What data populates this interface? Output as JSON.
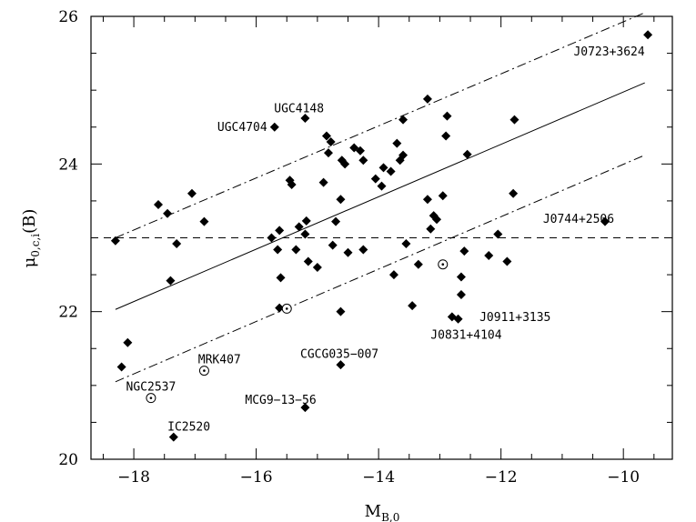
{
  "chart_data": {
    "type": "scatter",
    "title": "",
    "xlabel": {
      "main": "M",
      "sub": "B,0"
    },
    "ylabel": {
      "main": "μ",
      "sub": "0,c,i",
      "tail": "(B)"
    },
    "xlim": [
      -18.7,
      -9.2
    ],
    "ylim": [
      20,
      26
    ],
    "x_major_ticks": [
      -18,
      -16,
      -14,
      -12,
      -10
    ],
    "y_major_ticks": [
      20,
      22,
      24,
      26
    ],
    "x_minor_step": 0.5,
    "y_minor_step": 0.5,
    "grid": false,
    "series": [
      {
        "marker": "filled-diamond",
        "points": [
          [
            -18.3,
            22.96
          ],
          [
            -18.2,
            21.25
          ],
          [
            -18.1,
            21.58
          ],
          [
            -17.6,
            23.45
          ],
          [
            -17.45,
            23.33
          ],
          [
            -17.4,
            22.42
          ],
          [
            -17.3,
            22.92
          ],
          [
            -17.05,
            23.6
          ],
          [
            -16.85,
            23.22
          ],
          [
            -15.7,
            24.5
          ],
          [
            -15.75,
            23.0
          ],
          [
            -15.62,
            23.1
          ],
          [
            -15.65,
            22.84
          ],
          [
            -15.6,
            22.46
          ],
          [
            -15.62,
            22.05
          ],
          [
            -15.45,
            23.78
          ],
          [
            -15.42,
            23.72
          ],
          [
            -15.35,
            22.84
          ],
          [
            -15.3,
            23.15
          ],
          [
            -15.2,
            23.05
          ],
          [
            -15.18,
            23.23
          ],
          [
            -15.15,
            22.68
          ],
          [
            -15.2,
            24.62
          ],
          [
            -15.0,
            22.6
          ],
          [
            -14.9,
            23.75
          ],
          [
            -14.85,
            24.38
          ],
          [
            -14.82,
            24.15
          ],
          [
            -14.78,
            24.3
          ],
          [
            -14.75,
            22.9
          ],
          [
            -14.7,
            23.22
          ],
          [
            -14.62,
            23.52
          ],
          [
            -14.6,
            24.05
          ],
          [
            -14.55,
            24.0
          ],
          [
            -14.62,
            22.0
          ],
          [
            -14.5,
            22.8
          ],
          [
            -14.4,
            24.22
          ],
          [
            -14.3,
            24.18
          ],
          [
            -14.25,
            24.05
          ],
          [
            -14.25,
            22.84
          ],
          [
            -14.05,
            23.8
          ],
          [
            -13.95,
            23.7
          ],
          [
            -13.92,
            23.95
          ],
          [
            -13.8,
            23.9
          ],
          [
            -13.75,
            22.5
          ],
          [
            -13.7,
            24.28
          ],
          [
            -13.65,
            24.05
          ],
          [
            -13.6,
            24.12
          ],
          [
            -13.6,
            24.6
          ],
          [
            -13.55,
            22.92
          ],
          [
            -13.45,
            22.08
          ],
          [
            -13.35,
            22.64
          ],
          [
            -13.2,
            24.88
          ],
          [
            -13.2,
            23.52
          ],
          [
            -13.15,
            23.12
          ],
          [
            -13.1,
            23.3
          ],
          [
            -13.05,
            23.25
          ],
          [
            -12.95,
            23.57
          ],
          [
            -12.9,
            24.38
          ],
          [
            -12.88,
            24.65
          ],
          [
            -12.8,
            21.93
          ],
          [
            -12.7,
            21.9
          ],
          [
            -12.65,
            22.47
          ],
          [
            -12.65,
            22.23
          ],
          [
            -12.6,
            22.82
          ],
          [
            -12.55,
            24.13
          ],
          [
            -12.2,
            22.76
          ],
          [
            -12.05,
            23.05
          ],
          [
            -11.9,
            22.68
          ],
          [
            -11.8,
            23.6
          ],
          [
            -11.78,
            24.6
          ],
          [
            -10.3,
            23.22
          ],
          [
            -9.6,
            25.75
          ],
          [
            -15.2,
            20.7
          ],
          [
            -14.62,
            21.28
          ],
          [
            -17.35,
            20.3
          ]
        ]
      },
      {
        "marker": "open-circle-dot",
        "points": [
          [
            -17.72,
            20.83
          ],
          [
            -16.85,
            21.2
          ],
          [
            -15.5,
            22.04
          ],
          [
            -12.95,
            22.64
          ]
        ]
      }
    ],
    "lines": [
      {
        "style": "solid",
        "from": [
          -18.3,
          22.03
        ],
        "to": [
          -9.65,
          25.1
        ]
      },
      {
        "style": "dashdot",
        "from": [
          -18.3,
          23.0
        ],
        "to": [
          -9.65,
          26.05
        ]
      },
      {
        "style": "dashdot",
        "from": [
          -18.3,
          21.05
        ],
        "to": [
          -9.65,
          24.12
        ]
      },
      {
        "style": "dashed",
        "from": [
          -18.7,
          23.0
        ],
        "to": [
          -9.2,
          23.0
        ]
      }
    ],
    "annotations": [
      {
        "text": "UGC4148",
        "x": -15.3,
        "y": 24.75,
        "anchor": "middle"
      },
      {
        "text": "UGC4704",
        "x": -15.82,
        "y": 24.5,
        "anchor": "end"
      },
      {
        "text": "J0723+3624",
        "x": -9.65,
        "y": 25.52,
        "anchor": "end"
      },
      {
        "text": "J0744+2506",
        "x": -10.15,
        "y": 23.25,
        "anchor": "end"
      },
      {
        "text": "J0911+3135",
        "x": -12.35,
        "y": 21.92,
        "anchor": "start"
      },
      {
        "text": "J0831+4104",
        "x": -13.15,
        "y": 21.68,
        "anchor": "start"
      },
      {
        "text": "CGCG035-007",
        "x": -14.64,
        "y": 21.42,
        "anchor": "middle"
      },
      {
        "text": "MRK407",
        "x": -16.6,
        "y": 21.35,
        "anchor": "middle"
      },
      {
        "text": "NGC2537",
        "x": -17.72,
        "y": 20.98,
        "anchor": "middle"
      },
      {
        "text": "MCG9-13-56",
        "x": -15.6,
        "y": 20.8,
        "anchor": "middle"
      },
      {
        "text": "IC2520",
        "x": -17.1,
        "y": 20.44,
        "anchor": "middle"
      }
    ]
  }
}
